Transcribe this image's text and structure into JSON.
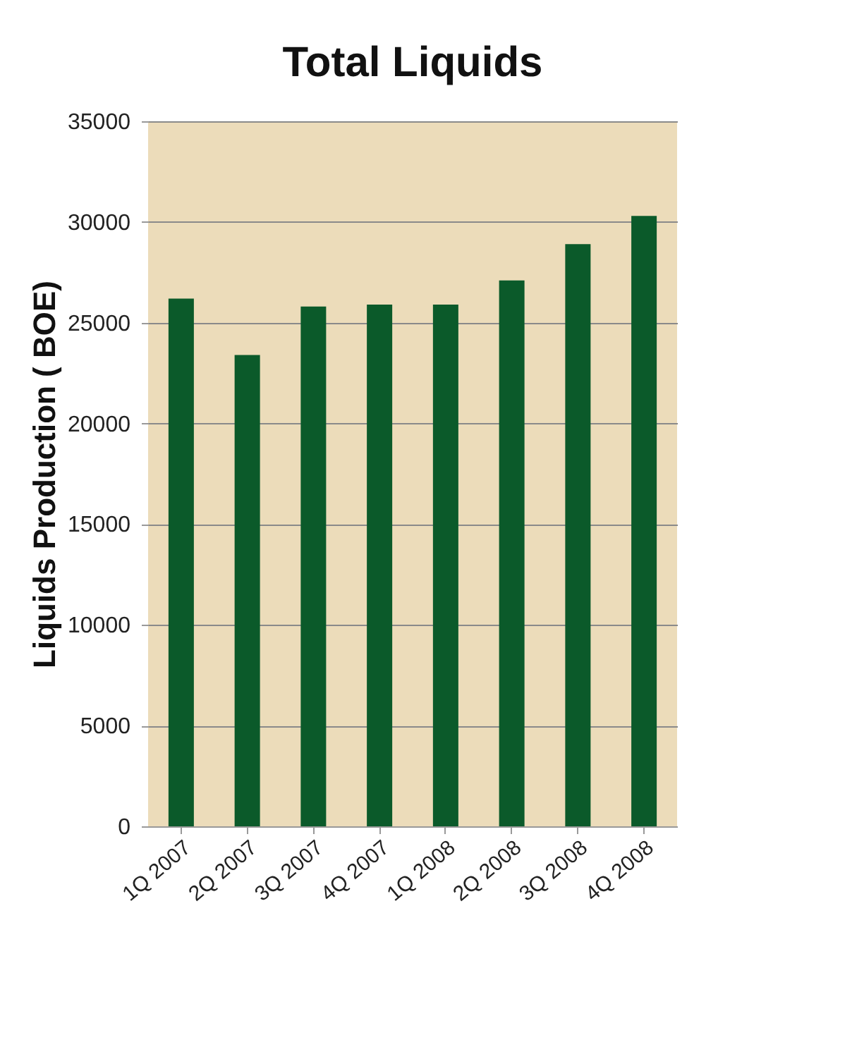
{
  "chart_data": {
    "type": "bar",
    "title": "Total Liquids",
    "ylabel": "Liquids Production ( BOE)",
    "categories": [
      "1Q 2007",
      "2Q 2007",
      "3Q 2007",
      "4Q 2007",
      "1Q 2008",
      "2Q 2008",
      "3Q 2008",
      "4Q 2008"
    ],
    "values": [
      26200,
      23400,
      25800,
      25900,
      25900,
      27100,
      28900,
      30300
    ],
    "color": "#0b5a2a",
    "ylim": [
      0,
      35000
    ],
    "yticks": [
      0,
      5000,
      10000,
      15000,
      20000,
      25000,
      30000,
      35000
    ],
    "grid": "y"
  }
}
